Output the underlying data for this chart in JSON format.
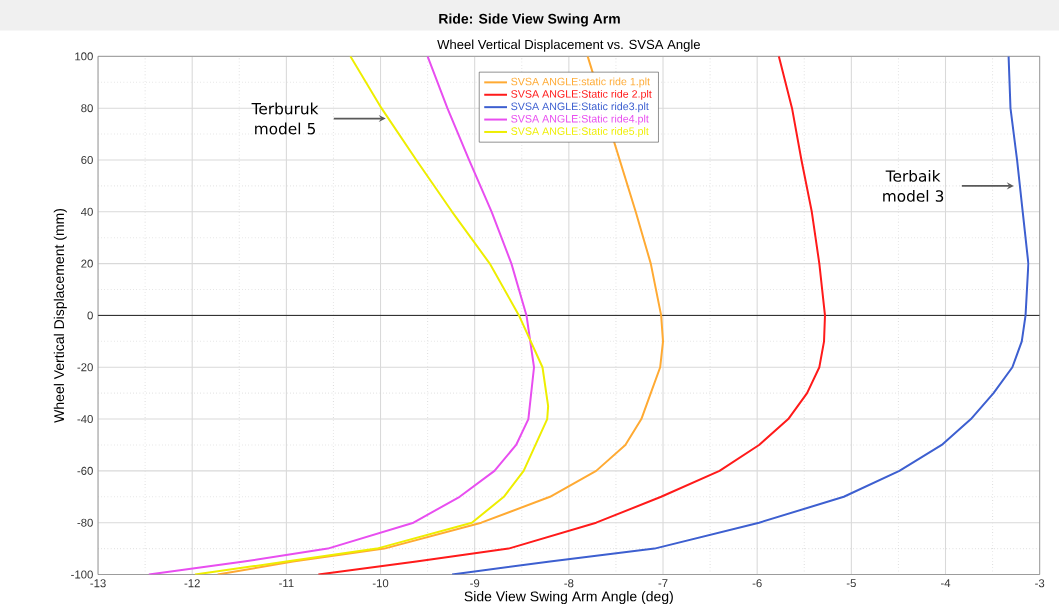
{
  "chart_data": {
    "type": "line",
    "title": "Ride: Side View Swing Arm",
    "subtitle": "Wheel Vertical Displacement vs. SVSA Angle",
    "xlabel": "Side View Swing Arm Angle (deg)",
    "ylabel": "Wheel Vertical Displacement (mm)",
    "xlim": [
      -13,
      -3
    ],
    "ylim": [
      -100,
      100
    ],
    "xticks": [
      -13,
      -12,
      -11,
      -10,
      -9,
      -8,
      -7,
      -6,
      -5,
      -4,
      -3
    ],
    "yticks": [
      -100,
      -80,
      -60,
      -40,
      -20,
      0,
      20,
      40,
      60,
      80,
      100
    ],
    "grid": true,
    "legend": "top",
    "line_style": "solid",
    "ref_lines": [
      {
        "axis": "y",
        "value": 0,
        "color": "#333333"
      }
    ],
    "annotations": [
      {
        "text": "Terburuk model 5",
        "x": -9.93,
        "y": 76
      },
      {
        "text": "Terbaik model 3",
        "x": -3.26,
        "y": 50
      }
    ],
    "series": [
      {
        "name": "SVSA ANGLE:static ride 1.plt",
        "color": "#ffaa33",
        "x": [
          -7.8,
          -7.52,
          -7.44,
          -7.29,
          -7.13,
          -7.02,
          -7.0,
          -7.03,
          -7.13,
          -7.23,
          -7.4,
          -7.71,
          -8.2,
          -8.93,
          -9.96,
          -10.93,
          -11.73
        ],
        "values": [
          100,
          null,
          null,
          40,
          20,
          0,
          -10,
          -20,
          -30,
          -40,
          -50,
          -60,
          -70,
          -80,
          -90,
          -95,
          -100
        ]
      },
      {
        "name": "SVSA ANGLE:Static ride 2.plt",
        "color": "#ff1a1a",
        "x": [
          -5.77,
          -5.63,
          -5.53,
          -5.42,
          -5.34,
          -5.28,
          -5.29,
          -5.34,
          -5.47,
          -5.67,
          -5.98,
          -6.4,
          -7.02,
          -7.71,
          -8.64,
          -9.62,
          -10.66
        ],
        "values": [
          100,
          80,
          60,
          40,
          20,
          0,
          -10,
          -20,
          -30,
          -40,
          -50,
          -60,
          -70,
          -80,
          -90,
          -95,
          -100
        ]
      },
      {
        "name": "SVSA ANGLE:Static ride3.plt",
        "color": "#3d5fd0",
        "x": [
          -3.33,
          -3.31,
          -3.24,
          -3.18,
          -3.12,
          -3.15,
          -3.19,
          -3.29,
          -3.49,
          -3.73,
          -4.04,
          -4.49,
          -5.08,
          -5.98,
          -7.09,
          -8.2,
          -9.24
        ],
        "values": [
          100,
          80,
          60,
          40,
          20,
          0,
          -10,
          -20,
          -30,
          -40,
          -50,
          -60,
          -70,
          -80,
          -90,
          -95,
          -100
        ]
      },
      {
        "name": "SVSA ANGLE:Static ride4.plt",
        "color": "#e84ef0",
        "x": [
          -9.5,
          -9.29,
          -9.06,
          -8.82,
          -8.61,
          -8.45,
          -8.37,
          -8.43,
          -8.56,
          -8.79,
          -9.16,
          -9.65,
          -10.56,
          -11.45,
          -12.46
        ],
        "values": [
          100,
          80,
          60,
          40,
          20,
          0,
          -20,
          -40,
          -50,
          -60,
          -70,
          -80,
          -90,
          -95,
          -100
        ]
      },
      {
        "name": "SVSA ANGLE:Static ride5.plt",
        "color": "#eeee00",
        "x": [
          -10.32,
          -9.99,
          -9.62,
          -9.24,
          -8.84,
          -8.53,
          -8.28,
          -8.22,
          -8.23,
          -8.48,
          -8.69,
          -9.03,
          -10.04,
          -11.0,
          -11.97
        ],
        "values": [
          100,
          80,
          60,
          40,
          20,
          0,
          -20,
          -35,
          -40,
          -60,
          -70,
          -80,
          -90,
          -95,
          -100
        ]
      }
    ]
  }
}
